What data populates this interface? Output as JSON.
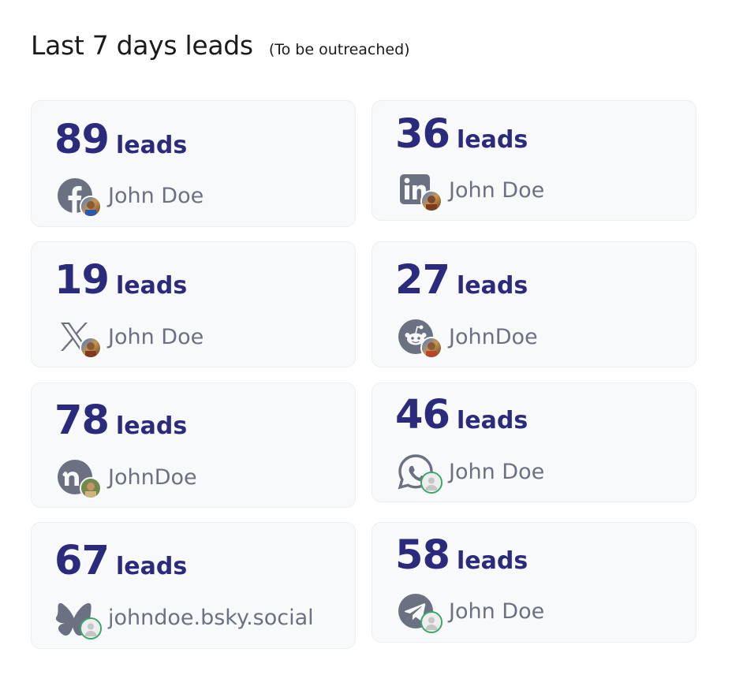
{
  "header": {
    "title": "Last 7 days leads",
    "subtitle": "(To be outreached)"
  },
  "cards": [
    {
      "count": "89",
      "unit": "leads",
      "platform": "facebook-icon",
      "account": "John Doe",
      "avatar": "photo"
    },
    {
      "count": "36",
      "unit": "leads",
      "platform": "linkedin-icon",
      "account": "John Doe",
      "avatar": "photo"
    },
    {
      "count": "19",
      "unit": "leads",
      "platform": "x-twitter-icon",
      "account": "John Doe",
      "avatar": "photo"
    },
    {
      "count": "27",
      "unit": "leads",
      "platform": "reddit-icon",
      "account": "JohnDoe",
      "avatar": "photo"
    },
    {
      "count": "78",
      "unit": "leads",
      "platform": "nextdoor-icon",
      "account": "JohnDoe",
      "avatar": "photo"
    },
    {
      "count": "46",
      "unit": "leads",
      "platform": "whatsapp-icon",
      "account": "John Doe",
      "avatar": "placeholder"
    },
    {
      "count": "67",
      "unit": "leads",
      "platform": "bluesky-icon",
      "account": "johndoe.bsky.social",
      "avatar": "placeholder"
    },
    {
      "count": "58",
      "unit": "leads",
      "platform": "telegram-icon",
      "account": "John Doe",
      "avatar": "placeholder"
    }
  ],
  "colors": {
    "count_text": "#2b2a7c",
    "account_text": "#6b7180",
    "icon_gray": "#6b7180",
    "card_bg": "#f8f9fb",
    "placeholder_ring": "#3aa56d"
  }
}
